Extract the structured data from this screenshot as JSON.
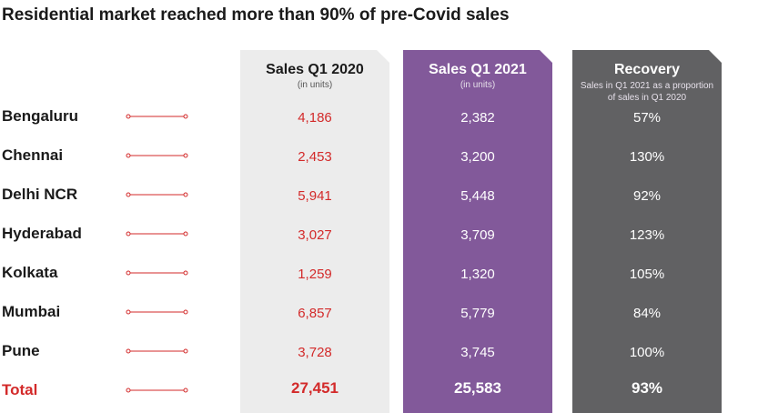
{
  "title": "Residential market reached more than 90% of pre-Covid sales",
  "columns": {
    "sales_2020": {
      "label": "Sales Q1 2020",
      "sub": "(in units)"
    },
    "sales_2021": {
      "label": "Sales Q1 2021",
      "sub": "(in units)"
    },
    "recovery": {
      "label": "Recovery",
      "sub": "Sales in Q1 2021 as a proportion of sales in Q1 2020"
    }
  },
  "colors": {
    "accent_red": "#d32a2a",
    "col_2020_bg": "#ececec",
    "col_2021_bg": "#82599a",
    "col_recovery_bg": "#616163"
  },
  "rows": [
    {
      "city": "Bengaluru",
      "q1_2020": "4,186",
      "q1_2021": "2,382",
      "recovery": "57%"
    },
    {
      "city": "Chennai",
      "q1_2020": "2,453",
      "q1_2021": "3,200",
      "recovery": "130%"
    },
    {
      "city": "Delhi NCR",
      "q1_2020": "5,941",
      "q1_2021": "5,448",
      "recovery": "92%"
    },
    {
      "city": "Hyderabad",
      "q1_2020": "3,027",
      "q1_2021": "3,709",
      "recovery": "123%"
    },
    {
      "city": "Kolkata",
      "q1_2020": "1,259",
      "q1_2021": "1,320",
      "recovery": "105%"
    },
    {
      "city": "Mumbai",
      "q1_2020": "6,857",
      "q1_2021": "5,779",
      "recovery": "84%"
    },
    {
      "city": "Pune",
      "q1_2020": "3,728",
      "q1_2021": "3,745",
      "recovery": "100%"
    },
    {
      "city": "Total",
      "q1_2020": "27,451",
      "q1_2021": "25,583",
      "recovery": "93%"
    }
  ],
  "chart_data": {
    "type": "table",
    "title": "Residential market reached more than 90% of pre-Covid sales",
    "columns": [
      "Sales Q1 2020",
      "Sales Q1 2021",
      "Recovery"
    ],
    "categories": [
      "Bengaluru",
      "Chennai",
      "Delhi NCR",
      "Hyderabad",
      "Kolkata",
      "Mumbai",
      "Pune",
      "Total"
    ],
    "series": [
      {
        "name": "Sales Q1 2020",
        "values": [
          4186,
          2453,
          5941,
          3027,
          1259,
          6857,
          3728,
          27451
        ]
      },
      {
        "name": "Sales Q1 2021",
        "values": [
          2382,
          3200,
          5448,
          3709,
          1320,
          5779,
          3745,
          25583
        ]
      },
      {
        "name": "Recovery",
        "values": [
          57,
          130,
          92,
          123,
          105,
          84,
          100,
          93
        ]
      }
    ]
  }
}
